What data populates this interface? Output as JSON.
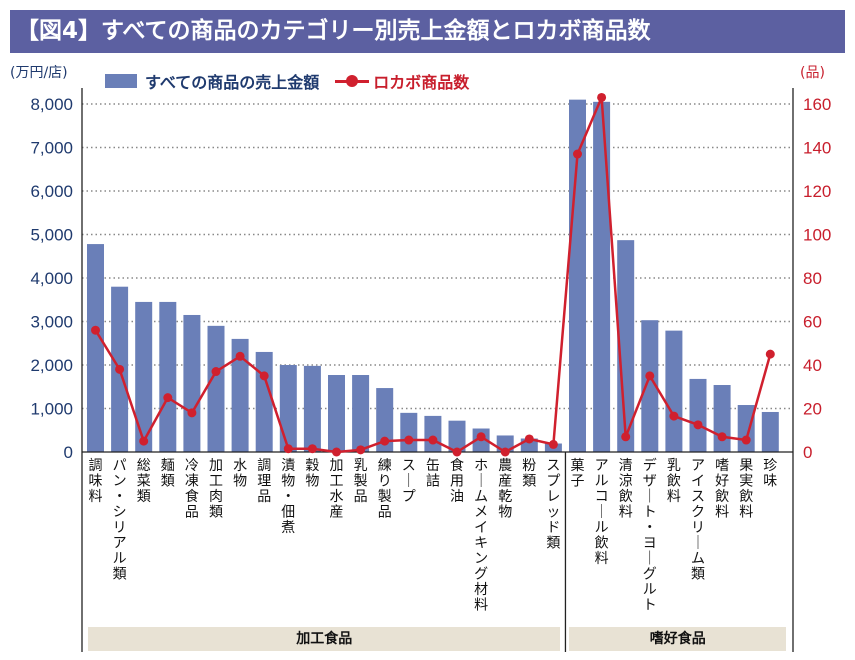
{
  "title": "【図4】すべての商品のカテゴリー別売上金額とロカボ商品数",
  "chart_data": {
    "type": "bar",
    "title": "【図4】すべての商品のカテゴリー別売上金額とロカボ商品数",
    "ylabel": "(万円/店)",
    "y2label": "(品)",
    "ylim": [
      0,
      8000
    ],
    "y2lim": [
      0,
      160
    ],
    "yticks": [
      "0",
      "1,000",
      "2,000",
      "3,000",
      "4,000",
      "5,000",
      "6,000",
      "7,000",
      "8,000"
    ],
    "y2ticks": [
      "0",
      "20",
      "40",
      "60",
      "80",
      "100",
      "120",
      "140",
      "160"
    ],
    "grid": true,
    "legend": "top-left",
    "categories": [
      "調味料",
      "パン・シリアル類",
      "総菜類",
      "麺類",
      "冷凍食品",
      "加工肉類",
      "水物",
      "調理品",
      "漬物・佃煮",
      "穀物",
      "加工水産",
      "乳製品",
      "練り製品",
      "スープ",
      "缶詰",
      "食用油",
      "ホームメイキング材料",
      "農産乾物",
      "粉類",
      "スプレッド類",
      "菓子",
      "アルコール飲料",
      "清涼飲料",
      "デザート・ヨーグルト",
      "乳飲料",
      "アイスクリーム類",
      "嗜好飲料",
      "果実飲料",
      "珍味"
    ],
    "series": [
      {
        "name": "すべての商品の売上金額",
        "type": "bar",
        "axis": "left",
        "color": "#6a7fb8",
        "values": [
          4780,
          3800,
          3450,
          3450,
          3150,
          2900,
          2600,
          2300,
          2000,
          1980,
          1770,
          1770,
          1470,
          900,
          830,
          720,
          540,
          380,
          310,
          195,
          8100,
          8050,
          4870,
          3030,
          2790,
          1680,
          1540,
          1080,
          920
        ]
      },
      {
        "name": "ロカボ商品数",
        "type": "line",
        "axis": "right",
        "color": "#d0202e",
        "values": [
          56,
          38,
          5,
          25,
          18,
          37,
          44,
          35,
          1.5,
          1.5,
          0,
          1,
          5,
          5.5,
          5.5,
          0,
          7,
          0,
          6,
          3.5,
          137,
          163,
          7,
          35,
          16.5,
          12.5,
          7,
          5.5,
          45
        ]
      }
    ],
    "groups": [
      {
        "label": "加工食品",
        "from": 0,
        "to": 19
      },
      {
        "label": "嗜好食品",
        "from": 20,
        "to": 28
      }
    ]
  },
  "legend": {
    "bar_label": "すべての商品の売上金額",
    "line_label": "ロカボ商品数"
  },
  "units": {
    "left": "(万円/店)",
    "right": "(品)"
  }
}
